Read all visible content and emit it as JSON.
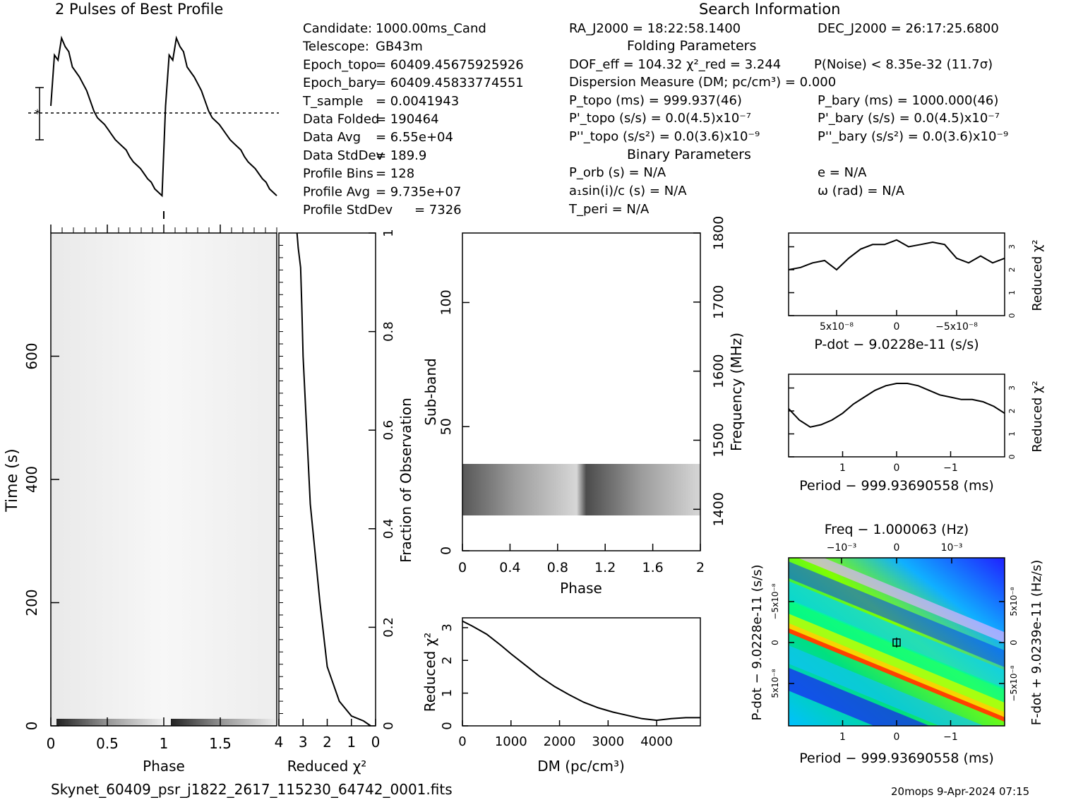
{
  "header": {
    "profile_title": "2 Pulses of Best Profile",
    "search_title": "Search Information",
    "folding_title": "Folding Parameters",
    "binary_title": "Binary Parameters"
  },
  "info_left": [
    {
      "label": "Candidate:",
      "value": "1000.00ms_Cand"
    },
    {
      "label": "Telescope:",
      "value": "GB43m"
    },
    {
      "label": "Epoch_topo",
      "value": "= 60409.45675925926"
    },
    {
      "label": "Epoch_bary",
      "value": "= 60409.45833774551"
    },
    {
      "label": "T_sample",
      "value": "=   0.0041943"
    },
    {
      "label": "Data Folded",
      "value": "=   190464"
    },
    {
      "label": "Data Avg",
      "value": "=   6.55e+04"
    },
    {
      "label": "Data StdDev",
      "value": "=   189.9"
    },
    {
      "label": "Profile Bins",
      "value": "=   128"
    },
    {
      "label": "Profile Avg",
      "value": "=   9.735e+07"
    },
    {
      "label": "Profile StdDev",
      "value": "=   7326"
    }
  ],
  "info_mid": {
    "ra": "RA_J2000 = 18:22:58.1400",
    "dof": "DOF_eff = 104.32  χ²_red = 3.244",
    "dm": "Dispersion Measure (DM; pc/cm³) = 0.000",
    "ptopo": "P_topo (ms) =  999.937(46)",
    "pdtopo": "P'_topo (s/s) = 0.0(4.5)x10⁻⁷",
    "pddtopo": "P''_topo (s/s²) = 0.0(3.6)x10⁻⁹",
    "porb": "P_orb (s) = N/A",
    "a1": "a₁sin(i)/c (s) = N/A",
    "tperi": "T_peri = N/A"
  },
  "info_right": {
    "dec": "DEC_J2000 = 26:17:25.6800",
    "pnoise": "P(Noise) < 8.35e-32  (11.7σ)",
    "pbary": "P_bary (ms) =  1000.000(46)",
    "pdbary": "P'_bary (s/s) = 0.0(4.5)x10⁻⁷",
    "pddbary": "P''_bary (s/s²) = 0.0(3.6)x10⁻⁹",
    "e": "e = N/A",
    "omega": "ω (rad) = N/A"
  },
  "footer": {
    "filename": "Skynet_60409_psr_j1822_2617_115230_64742_0001.fits",
    "stamp": "20mops  9-Apr-2024 07:15"
  },
  "colors": {
    "axis": "#000000",
    "heat_hot": "#ff3a00",
    "heat_cold": "#1c00ff"
  },
  "chart_data": [
    {
      "id": "profile",
      "type": "line",
      "title": "2 Pulses of Best Profile",
      "xlim": [
        0,
        2
      ],
      "grid": false,
      "series": [
        {
          "values": [
            0.55,
            0.85,
            0.82,
            0.95,
            0.9,
            0.87,
            0.78,
            0.75,
            0.72,
            0.68,
            0.64,
            0.58,
            0.52,
            0.48,
            0.46,
            0.44,
            0.41,
            0.38,
            0.35,
            0.33,
            0.31,
            0.29,
            0.25,
            0.22,
            0.2,
            0.18,
            0.15,
            0.12,
            0.1,
            0.06,
            0.04,
            0.02,
            0.55,
            0.85,
            0.82,
            0.95,
            0.9,
            0.87,
            0.78,
            0.75,
            0.72,
            0.68,
            0.64,
            0.58,
            0.52,
            0.48,
            0.46,
            0.44,
            0.41,
            0.38,
            0.35,
            0.33,
            0.31,
            0.29,
            0.25,
            0.22,
            0.2,
            0.18,
            0.15,
            0.12,
            0.1,
            0.06,
            0.04,
            0.02
          ]
        }
      ]
    },
    {
      "id": "time-phase",
      "type": "heatmap",
      "xlabel": "Phase",
      "ylabel": "Time (s)",
      "xticks": [
        "0",
        "0.5",
        "1",
        "1.5"
      ],
      "yticks": [
        "0",
        "200",
        "400",
        "600"
      ],
      "xlim": [
        0,
        2
      ],
      "ylim": [
        0,
        800
      ]
    },
    {
      "id": "redchi-vs-time",
      "type": "line",
      "xlabel": "Reduced χ²",
      "ylabel": "Fraction of Observation",
      "xticks": [
        "4",
        "3",
        "2",
        "1",
        "0"
      ],
      "yticks": [
        "0",
        "0.2",
        "0.4",
        "0.6",
        "0.8",
        "1"
      ],
      "xlim": [
        4,
        0
      ],
      "ylim": [
        0,
        1
      ],
      "x": [
        0.2,
        0.5,
        1.0,
        1.5,
        2.0,
        2.3,
        2.5,
        2.7,
        2.8,
        2.9,
        3.0,
        3.05,
        3.1,
        3.2,
        3.25
      ],
      "y": [
        0,
        0.01,
        0.02,
        0.05,
        0.12,
        0.25,
        0.35,
        0.45,
        0.55,
        0.65,
        0.75,
        0.85,
        0.93,
        0.97,
        1.0
      ]
    },
    {
      "id": "subband-phase",
      "type": "heatmap",
      "xlabel": "Phase",
      "ylabel": "Sub-band",
      "y2label": "Frequency (MHz)",
      "xticks": [
        "0",
        "0.4",
        "0.8",
        "1.2",
        "1.6",
        "2"
      ],
      "yticks": [
        "0",
        "50",
        "100"
      ],
      "y2ticks": [
        "1400",
        "1500",
        "1600",
        "1700",
        "1800"
      ],
      "xlim": [
        0,
        2
      ],
      "ylim": [
        0,
        128
      ],
      "y2lim": [
        1340,
        1800
      ]
    },
    {
      "id": "dm-chi",
      "type": "line",
      "xlabel": "DM (pc/cm³)",
      "ylabel": "Reduced χ²",
      "xticks": [
        "0",
        "1000",
        "2000",
        "3000",
        "4000"
      ],
      "yticks": [
        "0",
        "1",
        "2",
        "3"
      ],
      "xlim": [
        0,
        4900
      ],
      "ylim": [
        0,
        3.3
      ],
      "x": [
        0,
        200,
        500,
        800,
        1000,
        1300,
        1600,
        1900,
        2200,
        2500,
        2800,
        3100,
        3400,
        3700,
        4000,
        4300,
        4600,
        4900
      ],
      "y": [
        3.2,
        3.05,
        2.8,
        2.45,
        2.2,
        1.85,
        1.5,
        1.2,
        0.95,
        0.72,
        0.55,
        0.42,
        0.32,
        0.22,
        0.17,
        0.22,
        0.25,
        0.25
      ]
    },
    {
      "id": "pdot-chi",
      "type": "line",
      "xlabel": "P-dot − 9.0228e-11 (s/s)",
      "ylabel": "Reduced χ²",
      "xticks": [
        "5x10⁻⁸",
        "0",
        "−5x10⁻⁸"
      ],
      "yticks": [
        "0",
        "1",
        "2",
        "3"
      ],
      "xlim": [
        9e-08,
        -9e-08
      ],
      "ylim": [
        0,
        3.6
      ],
      "x": [
        9e-08,
        8e-08,
        7e-08,
        6e-08,
        5e-08,
        4e-08,
        3e-08,
        2e-08,
        1e-08,
        0,
        -1e-08,
        -2e-08,
        -3e-08,
        -4e-08,
        -5e-08,
        -6e-08,
        -7e-08,
        -8e-08,
        -9e-08
      ],
      "y": [
        2.0,
        2.1,
        2.3,
        2.4,
        2.0,
        2.5,
        2.9,
        3.1,
        3.1,
        3.3,
        3.0,
        3.1,
        3.2,
        3.1,
        2.5,
        2.3,
        2.6,
        2.3,
        2.5
      ]
    },
    {
      "id": "period-chi",
      "type": "line",
      "xlabel": "Period − 999.93690558 (ms)",
      "ylabel": "Reduced χ²",
      "xticks": [
        "1",
        "0",
        "−1"
      ],
      "yticks": [
        "0",
        "1",
        "2",
        "3"
      ],
      "xlim": [
        2.0,
        -2.0
      ],
      "ylim": [
        0,
        3.6
      ],
      "x": [
        2.0,
        1.8,
        1.6,
        1.4,
        1.2,
        1.0,
        0.8,
        0.6,
        0.4,
        0.2,
        0.0,
        -0.2,
        -0.4,
        -0.6,
        -0.8,
        -1.0,
        -1.2,
        -1.4,
        -1.6,
        -1.8,
        -2.0
      ],
      "y": [
        2.1,
        1.6,
        1.3,
        1.4,
        1.6,
        1.9,
        2.3,
        2.6,
        2.9,
        3.1,
        3.2,
        3.2,
        3.1,
        2.9,
        2.7,
        2.6,
        2.5,
        2.5,
        2.4,
        2.2,
        1.9
      ]
    },
    {
      "id": "ppdot-plane",
      "type": "heatmap",
      "title": "Freq − 1.000063 (Hz)",
      "xlabel": "Period − 999.93690558 (ms)",
      "ylabel": "P-dot − 9.0228e-11 (s/s)",
      "y2label": "F-dot + 9.0239e-11 (Hz/s)",
      "xticks": [
        "1",
        "0",
        "−1"
      ],
      "x2ticks": [
        "−10⁻³",
        "0",
        "10⁻³"
      ],
      "yticks": [
        "5x10⁻⁸",
        "0",
        "−5x10⁻⁸"
      ],
      "y2ticks": [
        "−5x10⁻⁸",
        "0",
        "5x10⁻⁸"
      ],
      "xlim": [
        2.0,
        -2.0
      ],
      "ylim": [
        9e-08,
        -9e-08
      ]
    }
  ]
}
